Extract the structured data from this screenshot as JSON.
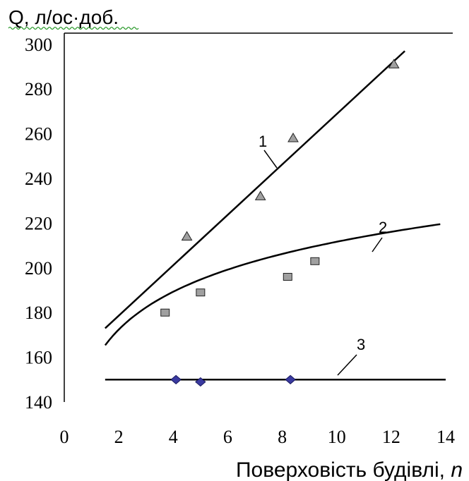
{
  "chart_data": {
    "type": "scatter",
    "ylabel": "Q, л/ос·доб.",
    "xlabel_main": "Поверховість будівлі, ",
    "xlabel_italic": "n",
    "xlim": [
      0,
      14
    ],
    "ylim": [
      140,
      300
    ],
    "x_ticks": [
      0,
      2,
      4,
      6,
      8,
      10,
      12,
      14
    ],
    "y_ticks": [
      140,
      160,
      180,
      200,
      220,
      240,
      260,
      280,
      300
    ],
    "grid": false,
    "colors": {
      "triangle": "#a0a0a0",
      "square": "#a0a0a0",
      "diamond": "#3a3aa0",
      "line": "#000000"
    },
    "series": [
      {
        "name": "1",
        "marker": "triangle",
        "points": [
          [
            4.5,
            214
          ],
          [
            7.2,
            232
          ],
          [
            8.4,
            258
          ],
          [
            12.1,
            291
          ]
        ],
        "fit": {
          "kind": "linear",
          "x": [
            1.5,
            12.5
          ],
          "y": [
            173,
            297
          ]
        }
      },
      {
        "name": "2",
        "marker": "square",
        "points": [
          [
            3.7,
            180
          ],
          [
            5.0,
            189
          ],
          [
            8.2,
            196
          ],
          [
            9.2,
            203
          ]
        ],
        "fit": {
          "kind": "log",
          "x": [
            1.5,
            13.8
          ],
          "a": 155.5,
          "b": 24.4
        }
      },
      {
        "name": "3",
        "marker": "diamond",
        "points": [
          [
            4.1,
            150
          ],
          [
            5.0,
            149
          ],
          [
            8.3,
            150
          ]
        ],
        "fit": {
          "kind": "linear",
          "x": [
            1.5,
            14
          ],
          "y": [
            150,
            150
          ]
        }
      }
    ]
  }
}
